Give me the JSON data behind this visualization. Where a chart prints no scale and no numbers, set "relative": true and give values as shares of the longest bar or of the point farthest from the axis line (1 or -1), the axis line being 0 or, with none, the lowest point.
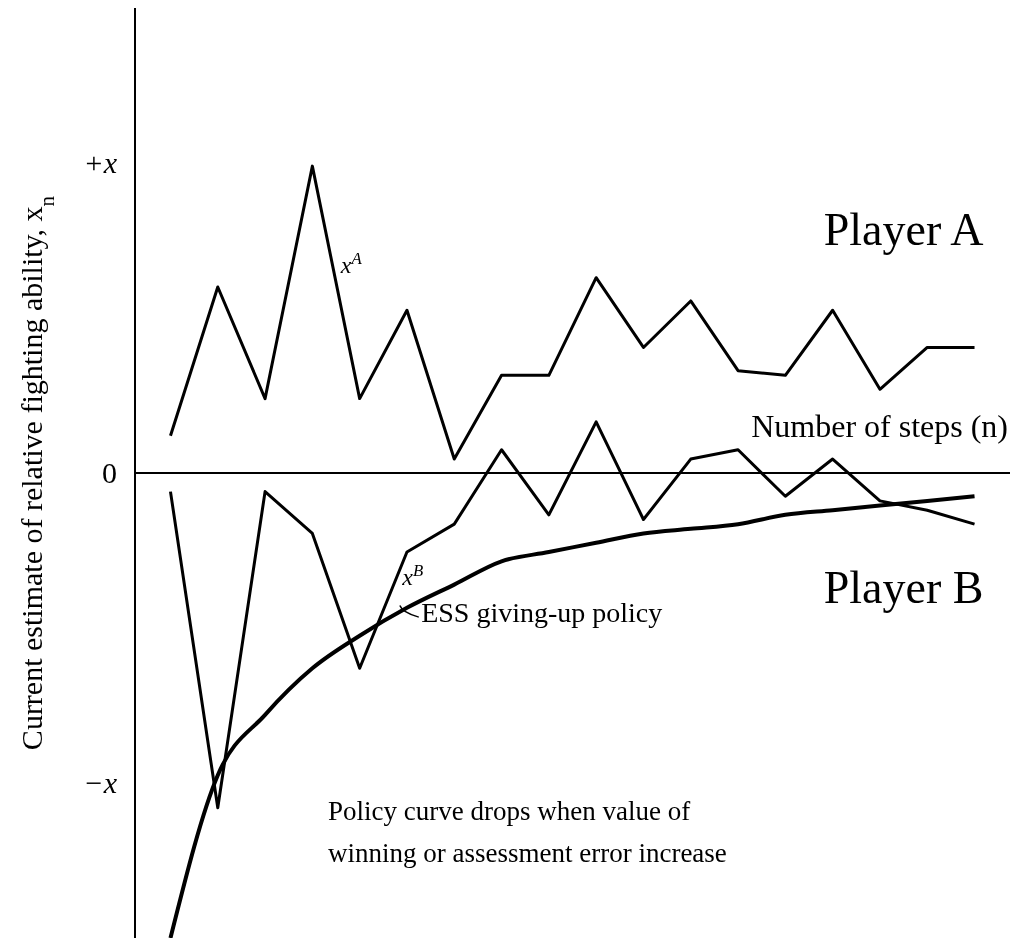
{
  "chart_data": {
    "type": "line",
    "relative": true,
    "ylabel": "Current estimate of relative fighting ability, x$_{n}$",
    "xlabel": "Number of steps (n)",
    "categories": [
      null,
      null,
      null,
      null,
      null,
      null,
      null,
      null,
      null,
      null,
      null,
      null,
      null,
      null,
      null,
      null,
      null,
      null
    ],
    "series": [
      {
        "name": "Player A",
        "color": "#000000",
        "values": [
          0.08,
          0.4,
          0.16,
          0.66,
          0.16,
          0.35,
          0.03,
          0.21,
          0.21,
          0.42,
          0.27,
          0.37,
          0.22,
          0.21,
          0.35,
          0.18,
          0.27,
          0.27
        ]
      },
      {
        "name": "Player B",
        "color": "#000000",
        "values": [
          -0.04,
          -0.72,
          -0.04,
          -0.13,
          -0.42,
          -0.17,
          -0.11,
          0.05,
          -0.09,
          0.11,
          -0.1,
          0.03,
          0.05,
          -0.05,
          0.03,
          -0.06,
          -0.08,
          -0.11
        ]
      },
      {
        "name": "ESS giving-up policy",
        "color": "#000000",
        "values": [
          -1,
          -0.65,
          -0.52,
          -0.42,
          -0.35,
          -0.29,
          -0.24,
          -0.19,
          -0.17,
          -0.15,
          -0.13,
          -0.12,
          -0.11,
          -0.09,
          -0.08,
          -0.07,
          -0.06,
          -0.05
        ]
      }
    ],
    "annotations": [
      "+x",
      "0",
      "−x",
      "x$^{A}$",
      "x$^{B}$",
      "Policy curve drops when value of winning or assessment error increase"
    ],
    "marker": "none",
    "line_style": "solid"
  }
}
